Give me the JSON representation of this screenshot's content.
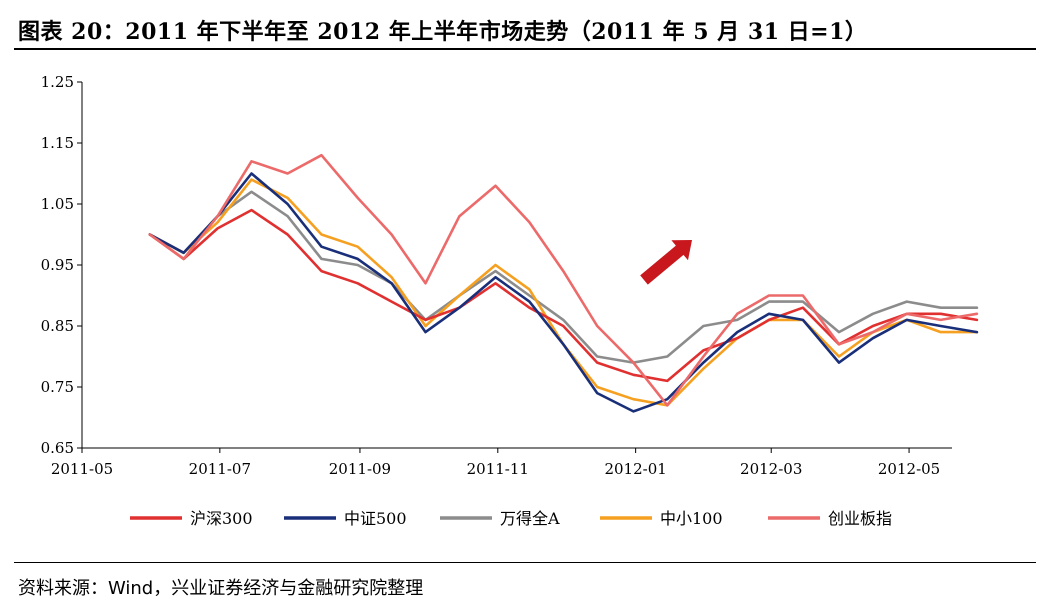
{
  "title": "图表 20：2011 年下半年至 2012 年上半年市场走势（2011 年 5 月 31 日=1）",
  "source": "资料来源：Wind，兴业证券经济与金融研究院整理",
  "chart_data": {
    "type": "line",
    "title": "图表 20：2011 年下半年至 2012 年上半年市场走势（2011 年 5 月 31 日=1）",
    "xlabel": "",
    "ylabel": "",
    "ylim": [
      0.65,
      1.25
    ],
    "yticks": [
      "1.25",
      "1.15",
      "1.05",
      "0.95",
      "0.85",
      "0.75",
      "0.65"
    ],
    "xticks": [
      "2011-05",
      "2011-07",
      "2011-09",
      "2011-11",
      "2012-01",
      "2012-03",
      "2012-05"
    ],
    "grid": false,
    "legend": "bottom",
    "annotation": "red-up-arrow",
    "x": [
      "2011-05-31",
      "2011-06-15",
      "2011-06-30",
      "2011-07-15",
      "2011-07-31",
      "2011-08-15",
      "2011-08-31",
      "2011-09-15",
      "2011-09-30",
      "2011-10-15",
      "2011-10-31",
      "2011-11-15",
      "2011-11-30",
      "2011-12-15",
      "2011-12-31",
      "2012-01-15",
      "2012-01-31",
      "2012-02-15",
      "2012-02-29",
      "2012-03-15",
      "2012-03-31",
      "2012-04-15",
      "2012-04-30",
      "2012-05-15",
      "2012-05-31"
    ],
    "series": [
      {
        "name": "沪深300",
        "color": "#e03030",
        "values": [
          1.0,
          0.96,
          1.01,
          1.04,
          1.0,
          0.94,
          0.92,
          0.89,
          0.86,
          0.88,
          0.92,
          0.88,
          0.85,
          0.79,
          0.77,
          0.76,
          0.81,
          0.83,
          0.86,
          0.88,
          0.82,
          0.85,
          0.87,
          0.87,
          0.86
        ]
      },
      {
        "name": "中证500",
        "color": "#1a2f7a",
        "values": [
          1.0,
          0.97,
          1.03,
          1.1,
          1.05,
          0.98,
          0.96,
          0.92,
          0.84,
          0.88,
          0.93,
          0.89,
          0.82,
          0.74,
          0.71,
          0.73,
          0.79,
          0.84,
          0.87,
          0.86,
          0.79,
          0.83,
          0.86,
          0.85,
          0.84
        ]
      },
      {
        "name": "万得全A",
        "color": "#8c8c8c",
        "values": [
          1.0,
          0.97,
          1.03,
          1.07,
          1.03,
          0.96,
          0.95,
          0.92,
          0.86,
          0.9,
          0.94,
          0.9,
          0.86,
          0.8,
          0.79,
          0.8,
          0.85,
          0.86,
          0.89,
          0.89,
          0.84,
          0.87,
          0.89,
          0.88,
          0.88
        ]
      },
      {
        "name": "中小100",
        "color": "#f5a020",
        "values": [
          1.0,
          0.97,
          1.02,
          1.09,
          1.06,
          1.0,
          0.98,
          0.93,
          0.85,
          0.9,
          0.95,
          0.91,
          0.82,
          0.75,
          0.73,
          0.72,
          0.78,
          0.83,
          0.86,
          0.86,
          0.8,
          0.84,
          0.86,
          0.84,
          0.84
        ]
      },
      {
        "name": "创业板指",
        "color": "#ec6a6a",
        "values": [
          1.0,
          0.96,
          1.03,
          1.12,
          1.1,
          1.13,
          1.06,
          1.0,
          0.92,
          1.03,
          1.08,
          1.02,
          0.94,
          0.85,
          0.79,
          0.72,
          0.8,
          0.87,
          0.9,
          0.9,
          0.82,
          0.84,
          0.87,
          0.86,
          0.87
        ]
      }
    ]
  }
}
